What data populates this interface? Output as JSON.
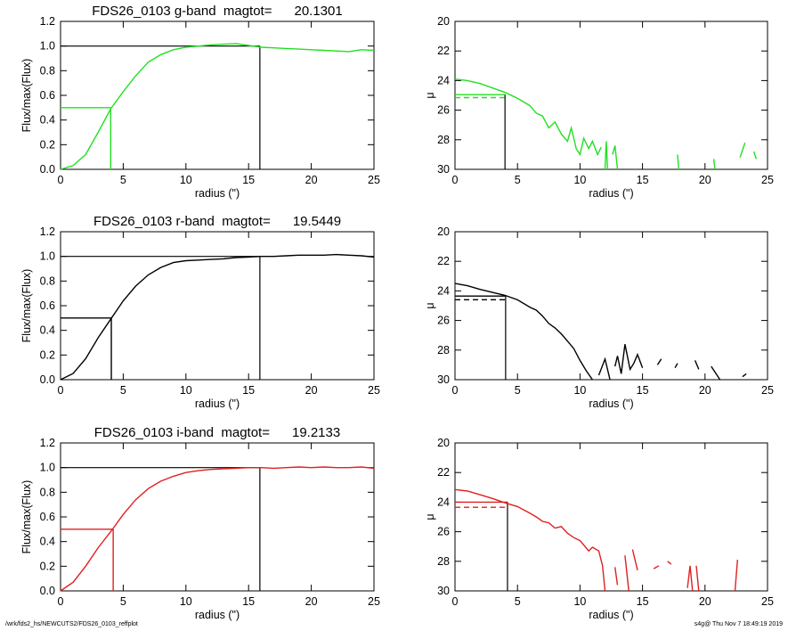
{
  "footer": {
    "left": "/wrk/fds2_hs/NEWCUTS2/FDS26_0103_reffplot",
    "right": "s4g@  Thu Nov  7 18:49:19 2019"
  },
  "chart_data": [
    {
      "id": "g-growth",
      "type": "line",
      "title": "FDS26_0103 g-band  magtot=      20.1301",
      "xlabel": "radius (\")",
      "ylabel": "Flux/max(Flux)",
      "xlim": [
        0,
        25
      ],
      "ylim": [
        0.0,
        1.2
      ],
      "xticks": [
        "0",
        "5",
        "10",
        "15",
        "20",
        "25"
      ],
      "yticks": [
        "0.0",
        "0.2",
        "0.4",
        "0.6",
        "0.8",
        "1.0",
        "1.2"
      ],
      "color": "#22e022",
      "r_half": 4.0,
      "r_total": 15.9,
      "series": [
        {
          "values": [
            [
              0,
              0.0
            ],
            [
              1,
              0.03
            ],
            [
              2,
              0.12
            ],
            [
              3,
              0.3
            ],
            [
              4,
              0.49
            ],
            [
              5,
              0.63
            ],
            [
              6,
              0.76
            ],
            [
              7,
              0.87
            ],
            [
              8,
              0.93
            ],
            [
              9,
              0.97
            ],
            [
              10,
              0.99
            ],
            [
              11,
              1.0
            ],
            [
              12,
              1.01
            ],
            [
              13,
              1.015
            ],
            [
              14,
              1.02
            ],
            [
              15,
              1.005
            ],
            [
              16,
              0.99
            ],
            [
              17,
              0.985
            ],
            [
              18,
              0.98
            ],
            [
              19,
              0.975
            ],
            [
              20,
              0.97
            ],
            [
              21,
              0.965
            ],
            [
              22,
              0.96
            ],
            [
              23,
              0.955
            ],
            [
              24,
              0.97
            ],
            [
              25,
              0.965
            ]
          ]
        }
      ]
    },
    {
      "id": "g-profile",
      "type": "line",
      "xlabel": "radius (\")",
      "ylabel": "μ",
      "xlim": [
        0,
        25
      ],
      "ylim": [
        30,
        20
      ],
      "xticks": [
        "0",
        "5",
        "10",
        "15",
        "20",
        "25"
      ],
      "yticks": [
        "20",
        "22",
        "24",
        "26",
        "28",
        "30"
      ],
      "color": "#22e022",
      "r_half": 4.0,
      "mu_solid": 24.95,
      "mu_dashed": 25.15,
      "series": [
        {
          "segments": [
            [
              [
                0,
                23.9
              ],
              [
                1,
                24.0
              ],
              [
                2,
                24.2
              ],
              [
                3,
                24.5
              ],
              [
                4,
                24.8
              ],
              [
                5,
                25.2
              ],
              [
                6,
                25.7
              ],
              [
                6.5,
                26.2
              ],
              [
                7,
                26.4
              ],
              [
                7.5,
                27.2
              ],
              [
                8,
                26.8
              ],
              [
                8.5,
                27.6
              ],
              [
                9,
                28.1
              ],
              [
                9.3,
                27.2
              ],
              [
                9.7,
                28.6
              ],
              [
                10,
                29.0
              ],
              [
                10.3,
                27.9
              ],
              [
                10.7,
                28.6
              ],
              [
                11,
                28.1
              ],
              [
                11.4,
                29.0
              ],
              [
                11.7,
                28.5
              ]
            ],
            [
              [
                12,
                30.0
              ],
              [
                12.1,
                28.1
              ],
              [
                12.2,
                30.0
              ]
            ],
            [
              [
                12.6,
                29.0
              ],
              [
                12.8,
                28.4
              ],
              [
                13.0,
                30.0
              ]
            ],
            [
              [
                17.8,
                29.0
              ],
              [
                17.9,
                30.0
              ]
            ],
            [
              [
                20.7,
                29.3
              ],
              [
                20.8,
                30.0
              ]
            ],
            [
              [
                22.8,
                29.2
              ],
              [
                23.2,
                28.2
              ]
            ],
            [
              [
                23.9,
                28.8
              ],
              [
                24.1,
                29.3
              ]
            ]
          ]
        }
      ]
    },
    {
      "id": "r-growth",
      "type": "line",
      "title": "FDS26_0103 r-band  magtot=      19.5449",
      "xlabel": "radius (\")",
      "ylabel": "Flux/max(Flux)",
      "xlim": [
        0,
        25
      ],
      "ylim": [
        0.0,
        1.2
      ],
      "xticks": [
        "0",
        "5",
        "10",
        "15",
        "20",
        "25"
      ],
      "yticks": [
        "0.0",
        "0.2",
        "0.4",
        "0.6",
        "0.8",
        "1.0",
        "1.2"
      ],
      "color": "#000000",
      "r_half": 4.05,
      "r_total": 15.9,
      "series": [
        {
          "values": [
            [
              0,
              0.0
            ],
            [
              1,
              0.05
            ],
            [
              2,
              0.17
            ],
            [
              3,
              0.34
            ],
            [
              4,
              0.49
            ],
            [
              5,
              0.64
            ],
            [
              6,
              0.76
            ],
            [
              7,
              0.85
            ],
            [
              8,
              0.91
            ],
            [
              9,
              0.95
            ],
            [
              10,
              0.965
            ],
            [
              11,
              0.97
            ],
            [
              12,
              0.975
            ],
            [
              13,
              0.98
            ],
            [
              14,
              0.99
            ],
            [
              15,
              0.995
            ],
            [
              16,
              1.0
            ],
            [
              17,
              1.0
            ],
            [
              18,
              1.005
            ],
            [
              19,
              1.01
            ],
            [
              20,
              1.01
            ],
            [
              21,
              1.01
            ],
            [
              22,
              1.015
            ],
            [
              23,
              1.01
            ],
            [
              24,
              1.005
            ],
            [
              25,
              0.995
            ]
          ]
        }
      ]
    },
    {
      "id": "r-profile",
      "type": "line",
      "xlabel": "radius (\")",
      "ylabel": "μ",
      "xlim": [
        0,
        25
      ],
      "ylim": [
        30,
        20
      ],
      "xticks": [
        "0",
        "5",
        "10",
        "15",
        "20",
        "25"
      ],
      "yticks": [
        "20",
        "22",
        "24",
        "26",
        "28",
        "30"
      ],
      "color": "#000000",
      "r_half": 4.05,
      "mu_solid": 24.35,
      "mu_dashed": 24.6,
      "series": [
        {
          "segments": [
            [
              [
                0,
                23.5
              ],
              [
                1,
                23.65
              ],
              [
                2,
                23.9
              ],
              [
                3,
                24.1
              ],
              [
                4,
                24.3
              ],
              [
                5,
                24.6
              ],
              [
                6,
                25.1
              ],
              [
                6.5,
                25.3
              ],
              [
                7,
                25.7
              ],
              [
                7.5,
                26.2
              ],
              [
                8,
                26.5
              ],
              [
                8.5,
                26.9
              ],
              [
                9,
                27.4
              ],
              [
                9.5,
                27.9
              ],
              [
                10,
                28.7
              ],
              [
                10.5,
                29.4
              ],
              [
                11,
                30.0
              ]
            ],
            [
              [
                11.5,
                29.7
              ],
              [
                12,
                28.6
              ],
              [
                12.4,
                30.0
              ]
            ],
            [
              [
                12.8,
                29.1
              ],
              [
                13.0,
                28.4
              ],
              [
                13.3,
                29.6
              ],
              [
                13.6,
                27.6
              ],
              [
                14,
                29.3
              ],
              [
                14.3,
                28.9
              ],
              [
                14.6,
                28.3
              ],
              [
                15,
                29.2
              ]
            ],
            [
              [
                16.2,
                29.0
              ],
              [
                16.5,
                28.6
              ]
            ],
            [
              [
                17.6,
                29.2
              ],
              [
                17.8,
                28.9
              ]
            ],
            [
              [
                19.2,
                28.7
              ],
              [
                19.5,
                29.3
              ]
            ],
            [
              [
                20.5,
                29.1
              ],
              [
                21.2,
                30.0
              ]
            ],
            [
              [
                23,
                29.8
              ],
              [
                23.3,
                29.6
              ]
            ]
          ]
        }
      ]
    },
    {
      "id": "i-growth",
      "type": "line",
      "title": "FDS26_0103 i-band  magtot=      19.2133",
      "xlabel": "radius (\")",
      "ylabel": "Flux/max(Flux)",
      "xlim": [
        0,
        25
      ],
      "ylim": [
        0.0,
        1.2
      ],
      "xticks": [
        "0",
        "5",
        "10",
        "15",
        "20",
        "25"
      ],
      "yticks": [
        "0.0",
        "0.2",
        "0.4",
        "0.6",
        "0.8",
        "1.0",
        "1.2"
      ],
      "color": "#e02020",
      "r_half": 4.2,
      "r_total": 15.9,
      "series": [
        {
          "values": [
            [
              0,
              0.0
            ],
            [
              1,
              0.07
            ],
            [
              2,
              0.2
            ],
            [
              3,
              0.35
            ],
            [
              4,
              0.48
            ],
            [
              5,
              0.62
            ],
            [
              6,
              0.74
            ],
            [
              7,
              0.83
            ],
            [
              8,
              0.89
            ],
            [
              9,
              0.93
            ],
            [
              10,
              0.96
            ],
            [
              11,
              0.975
            ],
            [
              12,
              0.985
            ],
            [
              13,
              0.99
            ],
            [
              14,
              0.995
            ],
            [
              15,
              1.0
            ],
            [
              16,
              1.0
            ],
            [
              17,
              0.995
            ],
            [
              18,
              1.0
            ],
            [
              19,
              1.005
            ],
            [
              20,
              1.0
            ],
            [
              21,
              1.005
            ],
            [
              22,
              1.0
            ],
            [
              23,
              1.0
            ],
            [
              24,
              1.005
            ],
            [
              25,
              0.995
            ]
          ]
        }
      ]
    },
    {
      "id": "i-profile",
      "type": "line",
      "xlabel": "radius (\")",
      "ylabel": "μ",
      "xlim": [
        0,
        25
      ],
      "ylim": [
        30,
        20
      ],
      "xticks": [
        "0",
        "5",
        "10",
        "15",
        "20",
        "25"
      ],
      "yticks": [
        "20",
        "22",
        "24",
        "26",
        "28",
        "30"
      ],
      "color": "#e02020",
      "r_half": 4.2,
      "mu_solid": 24.0,
      "mu_dashed": 24.35,
      "series": [
        {
          "segments": [
            [
              [
                0,
                23.15
              ],
              [
                1,
                23.25
              ],
              [
                2,
                23.5
              ],
              [
                3,
                23.75
              ],
              [
                4,
                24.05
              ],
              [
                5,
                24.3
              ],
              [
                6,
                24.75
              ],
              [
                6.5,
                25.0
              ],
              [
                7,
                25.3
              ],
              [
                7.5,
                25.4
              ],
              [
                8,
                25.75
              ],
              [
                8.5,
                25.65
              ],
              [
                9,
                26.1
              ],
              [
                9.5,
                26.4
              ],
              [
                10,
                26.6
              ],
              [
                10.3,
                26.9
              ],
              [
                10.7,
                27.3
              ],
              [
                11,
                27.05
              ],
              [
                11.5,
                27.3
              ],
              [
                11.8,
                28.3
              ],
              [
                12.0,
                30.0
              ]
            ],
            [
              [
                12.8,
                28.4
              ],
              [
                13.0,
                29.6
              ]
            ],
            [
              [
                13.6,
                27.6
              ],
              [
                13.9,
                30.0
              ]
            ],
            [
              [
                14.2,
                27.2
              ],
              [
                14.6,
                28.6
              ]
            ],
            [
              [
                15.9,
                28.5
              ],
              [
                16.3,
                28.3
              ]
            ],
            [
              [
                17.0,
                28.0
              ],
              [
                17.3,
                28.2
              ]
            ],
            [
              [
                18.6,
                29.8
              ],
              [
                18.8,
                28.3
              ],
              [
                19.0,
                30.0
              ]
            ],
            [
              [
                19.3,
                28.3
              ],
              [
                19.5,
                30.0
              ]
            ],
            [
              [
                22.4,
                30.0
              ],
              [
                22.6,
                27.9
              ]
            ]
          ]
        }
      ]
    }
  ]
}
